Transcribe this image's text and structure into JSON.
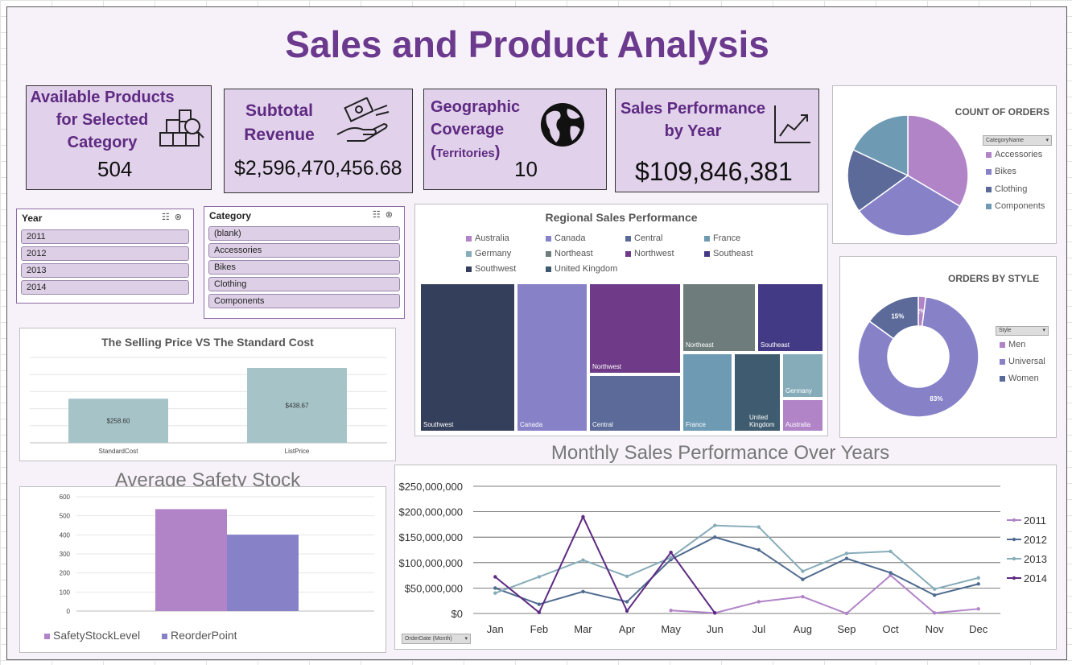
{
  "title": "Sales and Product Analysis",
  "kpis": {
    "products": {
      "label_1": "Available Products",
      "label_2": "for Selected",
      "label_3": "Category",
      "value": "504",
      "icon": "boxes-search-icon"
    },
    "revenue": {
      "label_1": "Subtotal",
      "label_2": "Revenue",
      "value": "$2,596,470,456.68",
      "icon": "money-hand-icon"
    },
    "geo": {
      "label_1": "Geographic",
      "label_2": "Coverage",
      "paren_open": "(",
      "label_3": "Territories",
      "paren_close": ")",
      "value": "10",
      "icon": "globe-icon"
    },
    "perf": {
      "label_1": "Sales Performance",
      "label_2": "by Year",
      "value": "$109,846,381",
      "icon": "trend-up-icon"
    }
  },
  "slicers": {
    "year": {
      "header": "Year",
      "items": [
        "2011",
        "2012",
        "2013",
        "2014"
      ]
    },
    "category": {
      "header": "Category",
      "items": [
        "(blank)",
        "Accessories",
        "Bikes",
        "Clothing",
        "Components"
      ]
    }
  },
  "colors": {
    "purple_dark": "#6b3a8e",
    "accessories": "#b184c8",
    "bikes": "#8782c8",
    "clothing": "#5b6a99",
    "components": "#6e9bb3",
    "y2011": "#b184c8",
    "y2012": "#4f6b8f",
    "y2013": "#86acb9",
    "y2014": "#5e2a82",
    "bar_teal": "#a6c4c8"
  },
  "chart_data": [
    {
      "id": "count_of_orders",
      "type": "pie",
      "title": "COUNT OF ORDERS",
      "filter_button": "CategoryName",
      "categories": [
        "Accessories",
        "Bikes",
        "Clothing",
        "Components"
      ],
      "values": [
        33.5,
        31.5,
        17,
        18
      ]
    },
    {
      "id": "orders_by_style",
      "type": "pie",
      "title": "ORDERS BY STYLE",
      "filter_button": "Style",
      "categories": [
        "Men",
        "Universal",
        "Women"
      ],
      "values": [
        2,
        83,
        15
      ],
      "data_labels": [
        "2%",
        "83%",
        "15%"
      ]
    },
    {
      "id": "regional_sales",
      "type": "treemap",
      "title": "Regional Sales Performance",
      "legend": [
        "Australia",
        "Canada",
        "Central",
        "France",
        "Germany",
        "Northeast",
        "Northwest",
        "Southeast",
        "Southwest",
        "United Kingdom"
      ],
      "tiles": [
        "Southwest",
        "Canada",
        "Northwest",
        "Central",
        "Northeast",
        "Southeast",
        "France",
        "United Kingdom",
        "Germany",
        "Australia"
      ],
      "tile_label_uk_1": "United",
      "tile_label_uk_2": "Kingdom"
    },
    {
      "id": "price_vs_cost",
      "type": "bar",
      "title": "The Selling Price VS The Standard Cost",
      "categories": [
        "StandardCost",
        "ListPrice"
      ],
      "values": [
        258.6,
        438.67
      ],
      "data_labels": [
        "$258.60",
        "$438.67"
      ],
      "ylim": [
        0,
        500
      ]
    },
    {
      "id": "safety_stock",
      "type": "bar",
      "title": "Average Safety Stock",
      "series": [
        {
          "name": "SafetyStockLevel",
          "values": [
            535
          ]
        },
        {
          "name": "ReorderPoint",
          "values": [
            401
          ]
        }
      ],
      "yticks": [
        "0",
        "100",
        "200",
        "300",
        "400",
        "500",
        "600"
      ],
      "ylim": [
        0,
        600
      ]
    },
    {
      "id": "monthly_sales",
      "type": "line",
      "title": "Monthly Sales Performance Over Years",
      "filter_button": "OrderDate (Month)",
      "categories": [
        "Jan",
        "Feb",
        "Mar",
        "Apr",
        "May",
        "Jun",
        "Jul",
        "Aug",
        "Sep",
        "Oct",
        "Nov",
        "Dec"
      ],
      "yticks": [
        "$0",
        "$50,000,000",
        "$100,000,000",
        "$150,000,000",
        "$200,000,000",
        "$250,000,000"
      ],
      "ylim": [
        0,
        250000000
      ],
      "series": [
        {
          "name": "2011",
          "values": [
            null,
            null,
            null,
            null,
            6000000,
            1000000,
            23000000,
            33000000,
            0,
            75000000,
            1000000,
            9000000
          ]
        },
        {
          "name": "2012",
          "values": [
            50000000,
            18000000,
            43000000,
            23000000,
            106000000,
            150000000,
            125000000,
            67000000,
            108000000,
            80000000,
            36000000,
            58000000
          ]
        },
        {
          "name": "2013",
          "values": [
            40000000,
            72000000,
            105000000,
            73000000,
            110000000,
            173000000,
            170000000,
            83000000,
            118000000,
            122000000,
            48000000,
            70000000
          ]
        },
        {
          "name": "2014",
          "values": [
            72000000,
            2000000,
            190000000,
            5000000,
            120000000,
            1000000,
            null,
            null,
            null,
            null,
            null,
            null
          ]
        }
      ]
    }
  ]
}
